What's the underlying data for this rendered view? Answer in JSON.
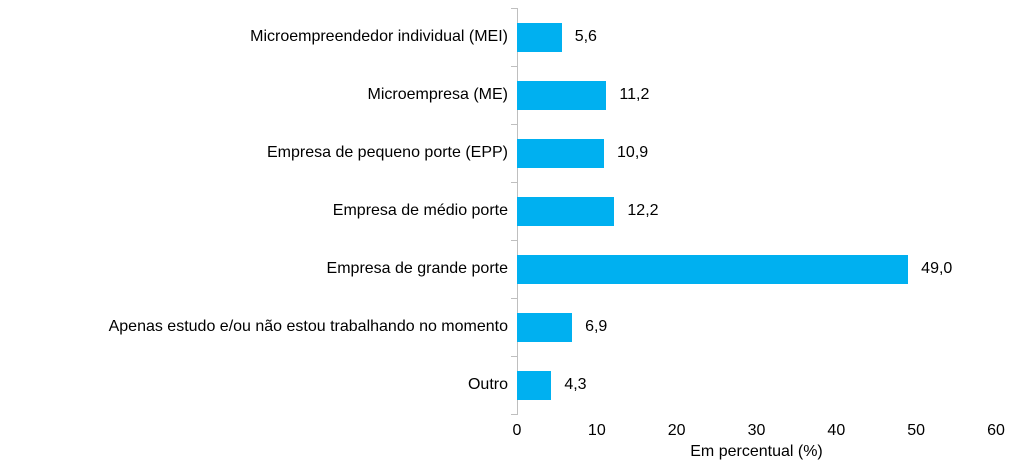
{
  "chart_data": {
    "type": "bar",
    "orientation": "horizontal",
    "title": "",
    "categories": [
      "Microempreendedor individual (MEI)",
      "Microempresa (ME)",
      "Empresa de pequeno porte (EPP)",
      "Empresa de médio porte",
      "Empresa de grande porte",
      "Apenas estudo e/ou não estou trabalhando no momento",
      "Outro"
    ],
    "values": [
      5.6,
      11.2,
      10.9,
      12.2,
      49.0,
      6.9,
      4.3
    ],
    "value_labels": [
      "5,6",
      "11,2",
      "10,9",
      "12,2",
      "49,0",
      "6,9",
      "4,3"
    ],
    "x_ticks": [
      "0",
      "10",
      "20",
      "30",
      "40",
      "50",
      "60"
    ],
    "xlim": [
      0,
      60
    ],
    "xlabel": "Em percentual (%)",
    "ylabel": "",
    "legend_position": "none",
    "grid": false,
    "colors": {
      "bar": "#00B0F0",
      "axis_line": "#BFBFBF",
      "text": "#000000",
      "background": "#FFFFFF"
    }
  }
}
